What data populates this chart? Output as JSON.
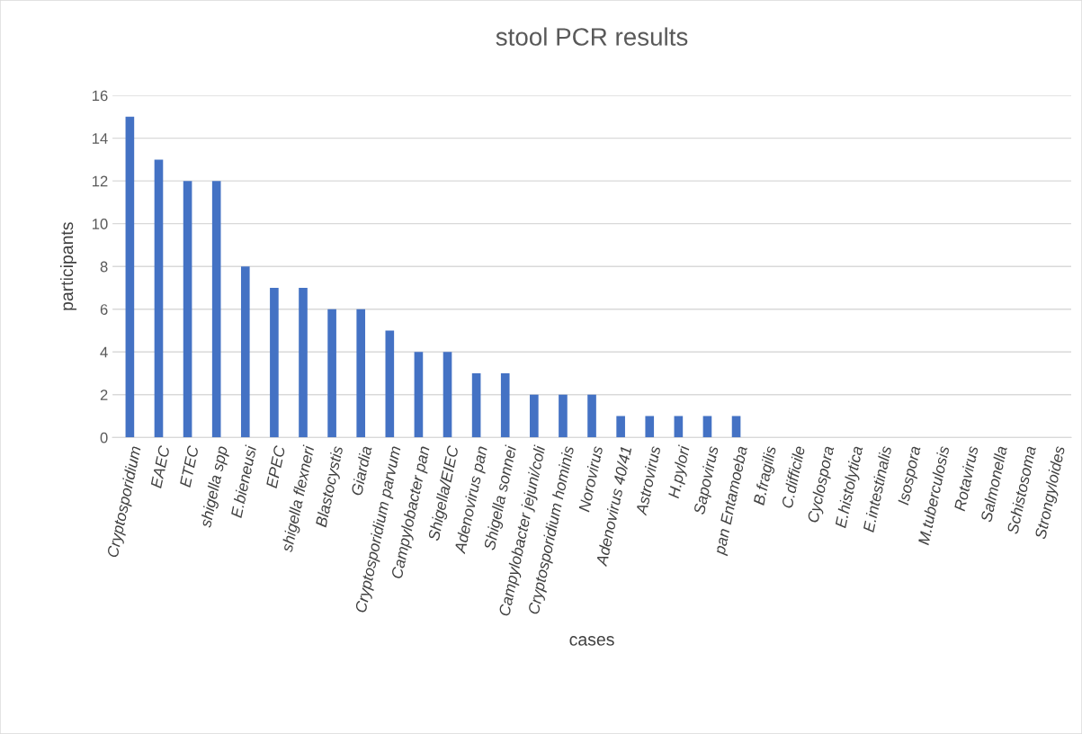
{
  "chart_data": {
    "type": "bar",
    "title": "stool PCR results",
    "xlabel": "cases",
    "ylabel": "participants",
    "categories": [
      "Cryptosporidium",
      "EAEC",
      "ETEC",
      "shigella spp",
      "E.bieneusi",
      "EPEC",
      "shigella flexneri",
      "Blastocystis",
      "Giardia",
      "Cryptosporidium parvum",
      "Campylobacter pan",
      "Shigella/EIEC",
      "Adenovirus pan",
      "Shigella sonnei",
      "Campylobacter jejuni/coli",
      "Cryptosporidium hominis",
      "Norovirus",
      "Adenovirus 40/41",
      "Astrovirus",
      "H.pylori",
      "Sapovirus",
      "pan Entamoeba",
      "B.fragilis",
      "C.difficile",
      "Cyclospora",
      "E.histolytica",
      "E.intestinalis",
      "Isospora",
      "M.tuberculosis",
      "Rotavirus",
      "Salmonella",
      "Schistosoma",
      "Strongyloides"
    ],
    "values": [
      15,
      13,
      12,
      12,
      8,
      7,
      7,
      6,
      6,
      5,
      4,
      4,
      3,
      3,
      2,
      2,
      2,
      1,
      1,
      1,
      1,
      1,
      0,
      0,
      0,
      0,
      0,
      0,
      0,
      0,
      0,
      0,
      0
    ],
    "color": "#4472c4",
    "ylim": [
      0,
      16
    ],
    "yticks": [
      0,
      2,
      4,
      6,
      8,
      10,
      12,
      14,
      16
    ],
    "grid": "y",
    "legend": false
  }
}
